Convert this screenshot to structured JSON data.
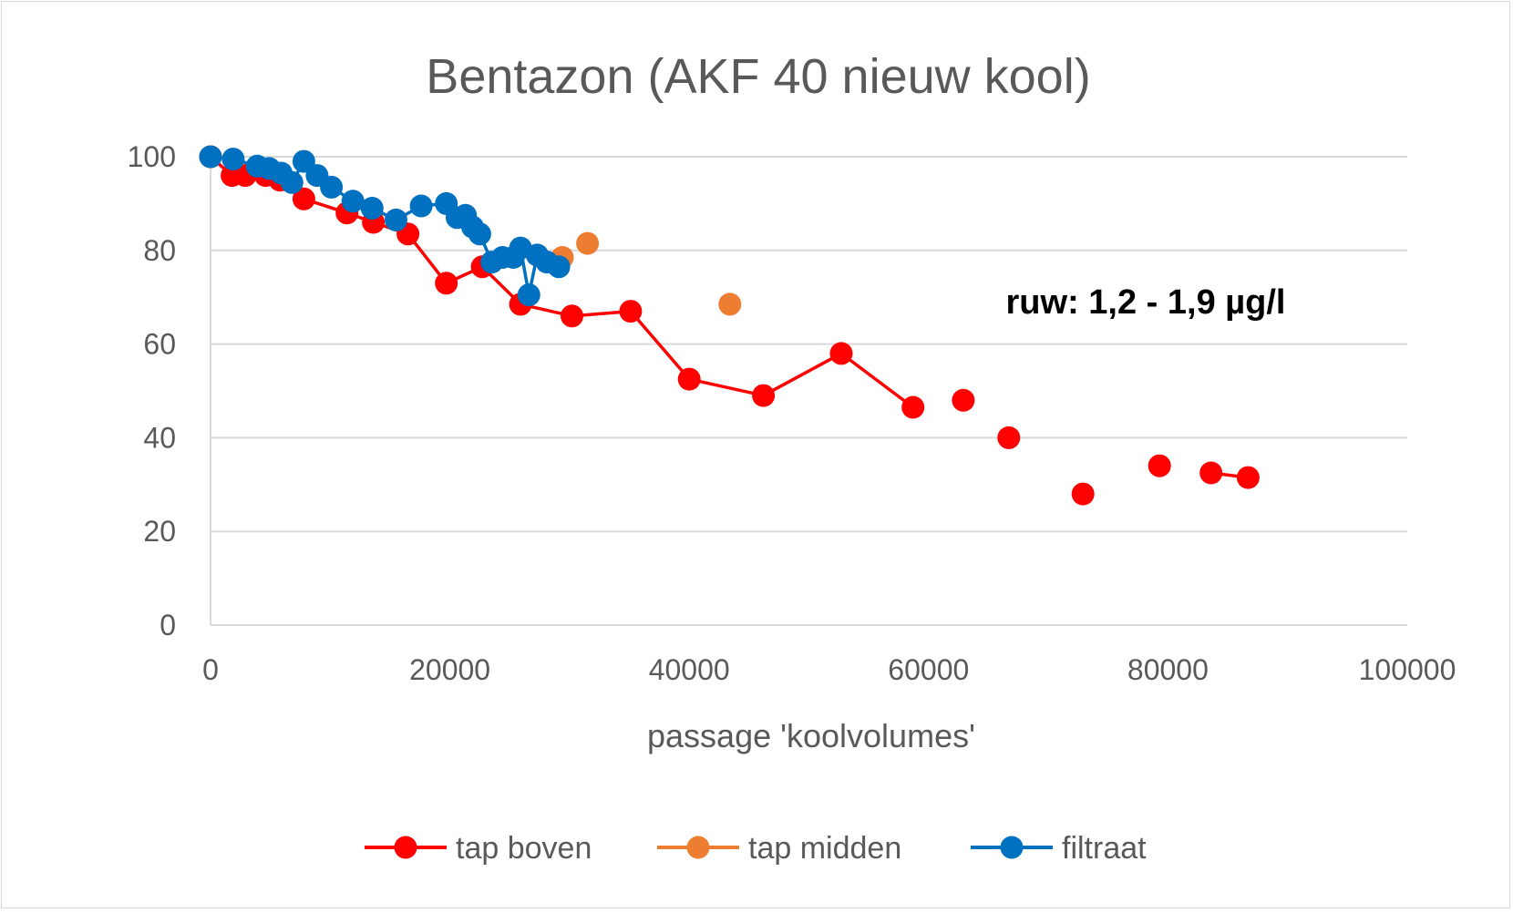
{
  "chart_data": {
    "type": "scatter",
    "title": "Bentazon (AKF 40 nieuw kool)",
    "xlabel": "passage 'koolvolumes'",
    "ylabel": "",
    "xlim": [
      0,
      100000
    ],
    "ylim": [
      0,
      100
    ],
    "xticks": [
      "0",
      "20000",
      "40000",
      "60000",
      "80000",
      "100000"
    ],
    "yticks": [
      "0",
      "20",
      "40",
      "60",
      "80",
      "100"
    ],
    "grid": "horizontal",
    "legend_position": "bottom",
    "annotation": "ruw: 1,2 - 1,9 µg/l",
    "series": [
      {
        "name": "tap boven",
        "color": "#ff0000",
        "segments": [
          [
            [
              0,
              100
            ],
            [
              1800,
              96
            ],
            [
              2900,
              96
            ],
            [
              4600,
              96
            ],
            [
              5800,
              95
            ],
            [
              7800,
              91
            ],
            [
              11400,
              88
            ],
            [
              13600,
              86
            ],
            [
              16500,
              83.5
            ],
            [
              19700,
              73
            ],
            [
              22700,
              76.5
            ],
            [
              25900,
              68.5
            ],
            [
              30200,
              66
            ],
            [
              35100,
              67
            ],
            [
              40000,
              52.5
            ],
            [
              46200,
              49
            ],
            [
              52700,
              58
            ],
            [
              58700,
              46.5
            ]
          ],
          [
            [
              62900,
              48
            ]
          ],
          [
            [
              66700,
              40
            ]
          ],
          [
            [
              72900,
              28
            ]
          ],
          [
            [
              79300,
              34
            ]
          ],
          [
            [
              83600,
              32.5
            ],
            [
              86700,
              31.5
            ]
          ]
        ]
      },
      {
        "name": "tap midden",
        "color": "#ed7d31",
        "segments": [
          [
            [
              29400,
              78.5
            ]
          ],
          [
            [
              31500,
              81.5
            ]
          ],
          [
            [
              43400,
              68.5
            ]
          ]
        ]
      },
      {
        "name": "filtraat",
        "color": "#0070c0",
        "segments": [
          [
            [
              0,
              100
            ],
            [
              1900,
              99.5
            ],
            [
              3900,
              98
            ],
            [
              4900,
              97.5
            ],
            [
              5900,
              96.5
            ],
            [
              6800,
              94.5
            ],
            [
              7800,
              99
            ],
            [
              8900,
              96
            ],
            [
              10100,
              93.5
            ],
            [
              11900,
              90.5
            ],
            [
              13500,
              89
            ],
            [
              15500,
              86.5
            ],
            [
              17600,
              89.5
            ],
            [
              19700,
              90
            ],
            [
              20600,
              87
            ],
            [
              21300,
              87.5
            ],
            [
              21900,
              85
            ],
            [
              22500,
              83.5
            ],
            [
              23500,
              77.5
            ],
            [
              24400,
              78.5
            ],
            [
              25300,
              78.5
            ],
            [
              25900,
              80.5
            ],
            [
              26600,
              70.5
            ],
            [
              27300,
              79
            ],
            [
              28100,
              77.5
            ],
            [
              29100,
              76.5
            ]
          ]
        ]
      }
    ]
  }
}
